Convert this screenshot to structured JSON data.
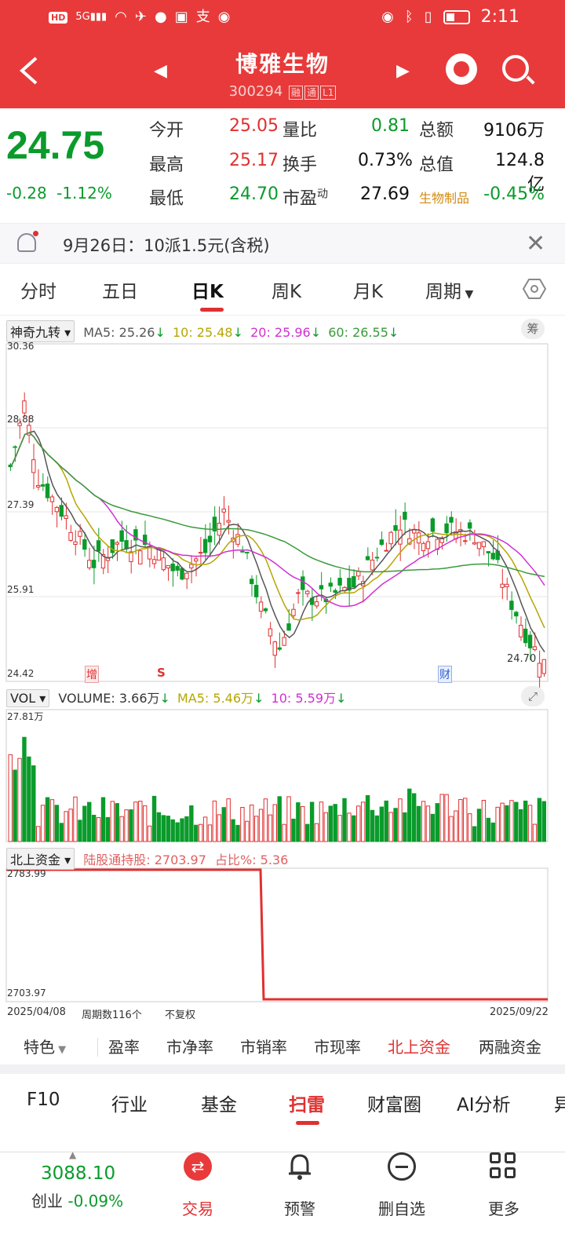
{
  "status": {
    "time": "2:11",
    "network": "5G",
    "hd": "HD"
  },
  "header": {
    "name": "博雅生物",
    "code": "300294",
    "tags": [
      "融",
      "通",
      "L1"
    ]
  },
  "quote": {
    "price": "24.75",
    "change": "-0.28",
    "change_pct": "-1.12%",
    "rows": [
      {
        "l1": "今开",
        "v1": "25.05",
        "c1": "red",
        "l2": "量比",
        "v2": "0.81",
        "c2": "green",
        "l3": "总额",
        "v3": "9106万",
        "c3": "blk"
      },
      {
        "l1": "最高",
        "v1": "25.17",
        "c1": "red",
        "l2": "换手",
        "v2": "0.73%",
        "c2": "blk",
        "l3": "总值",
        "v3": "124.8亿",
        "c3": "blk"
      },
      {
        "l1": "最低",
        "v1": "24.70",
        "c1": "green",
        "l2": "市盈",
        "v2": "27.69",
        "c2": "blk",
        "l3": "生物制品",
        "v3": "-0.45%",
        "c3": "green"
      }
    ],
    "pe_superscript": "动"
  },
  "notice": {
    "text": "9月26日：10派1.5元(含税)"
  },
  "tabs": [
    "分时",
    "五日",
    "日K",
    "周K",
    "月K",
    "周期"
  ],
  "kline": {
    "indicator": "神奇九转",
    "ma5": "MA5: 25.26",
    "ma10": "10: 25.48",
    "ma20": "20: 25.96",
    "ma60": "60: 26.55",
    "axis": [
      "30.36",
      "28.88",
      "27.39",
      "25.91",
      "24.42"
    ],
    "low_label": "24.70",
    "markers": {
      "zeng": "增",
      "s": "S",
      "cai": "财"
    },
    "chou": "筹"
  },
  "volume": {
    "indicator": "VOL",
    "volume": "VOLUME: 3.66万",
    "ma5": "MA5: 5.46万",
    "ma10": "10: 5.59万",
    "max": "27.81万"
  },
  "northbound": {
    "indicator": "北上资金",
    "hold": "陆股通持股: 2703.97",
    "pct": "占比%: 5.36",
    "top": "2783.99",
    "bottom": "2703.97",
    "start_date": "2025/04/08",
    "count": "周期数116个",
    "adjust": "不复权",
    "end_date": "2025/09/22"
  },
  "bottom_tabs": [
    "特色",
    "盈率",
    "市净率",
    "市销率",
    "市现率",
    "北上资金",
    "两融资金"
  ],
  "feature_tabs": [
    "F10",
    "行业",
    "基金",
    "扫雷",
    "财富圈",
    "AI分析",
    "异"
  ],
  "navbar": {
    "index_value": "3088.10",
    "index_name": "创业",
    "index_change": "-0.09%",
    "items": [
      "交易",
      "预警",
      "删自选",
      "更多"
    ]
  },
  "colors": {
    "red": "#e83a3a",
    "green": "#0a9b2b",
    "ma5": "#555555",
    "ma10": "#b5a600",
    "ma20": "#d030d0",
    "ma60": "#3a9a3a"
  }
}
